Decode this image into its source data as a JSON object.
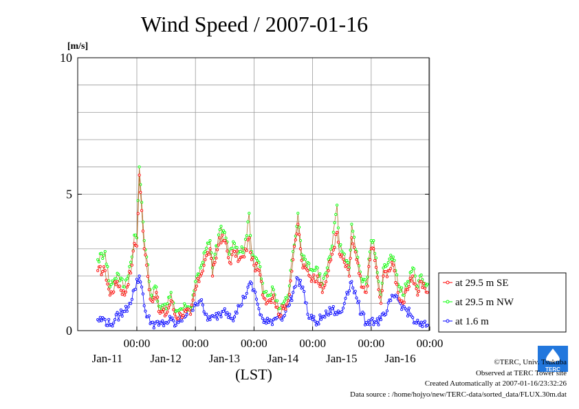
{
  "chart_data": {
    "type": "line",
    "title": "Wind Speed / 2007-01-16",
    "ylabel": "[m/s]",
    "xlabel": "(LST)",
    "ylim": [
      0,
      10
    ],
    "yticks": [
      0,
      5,
      10
    ],
    "xlim": [
      "2007-01-10T08:00",
      "2007-01-16T23:30"
    ],
    "time_step": "30min",
    "xtick_labels": [
      {
        "time": "00:00",
        "date": "Jan-11"
      },
      {
        "time": "00:00",
        "date": "Jan-12"
      },
      {
        "time": "00:00",
        "date": "Jan-13"
      },
      {
        "time": "00:00",
        "date": "Jan-14"
      },
      {
        "time": "00:00",
        "date": "Jan-15"
      },
      {
        "time": "00:00",
        "date": "Jan-16"
      }
    ],
    "grid": true,
    "legend_position": "right",
    "series": [
      {
        "name": "at 29.5 m SE",
        "color": "#ff0000",
        "keypoints": [
          [
            0,
            2.2
          ],
          [
            6,
            2.2
          ],
          [
            10,
            1.3
          ],
          [
            16,
            1.8
          ],
          [
            22,
            1.3
          ],
          [
            28,
            2.4
          ],
          [
            30,
            3.2
          ],
          [
            32,
            3.1
          ],
          [
            34,
            5.7
          ],
          [
            36,
            4.4
          ],
          [
            38,
            3.0
          ],
          [
            40,
            2.4
          ],
          [
            42,
            1.5
          ],
          [
            44,
            1.1
          ],
          [
            48,
            1.4
          ],
          [
            50,
            0.7
          ],
          [
            56,
            0.6
          ],
          [
            60,
            1.1
          ],
          [
            64,
            0.5
          ],
          [
            68,
            0.6
          ],
          [
            72,
            0.7
          ],
          [
            76,
            0.6
          ],
          [
            80,
            1.5
          ],
          [
            84,
            2.0
          ],
          [
            88,
            2.6
          ],
          [
            92,
            3.0
          ],
          [
            94,
            2.0
          ],
          [
            96,
            2.5
          ],
          [
            100,
            3.4
          ],
          [
            104,
            3.3
          ],
          [
            108,
            2.5
          ],
          [
            112,
            2.9
          ],
          [
            116,
            2.6
          ],
          [
            120,
            2.7
          ],
          [
            124,
            3.4
          ],
          [
            126,
            2.6
          ],
          [
            128,
            2.4
          ],
          [
            132,
            2.2
          ],
          [
            136,
            1.2
          ],
          [
            140,
            1.1
          ],
          [
            144,
            1.3
          ],
          [
            148,
            0.6
          ],
          [
            152,
            0.8
          ],
          [
            156,
            1.1
          ],
          [
            160,
            2.6
          ],
          [
            164,
            3.9
          ],
          [
            166,
            3.0
          ],
          [
            168,
            2.3
          ],
          [
            172,
            2.2
          ],
          [
            176,
            1.9
          ],
          [
            180,
            2.0
          ],
          [
            184,
            1.4
          ],
          [
            188,
            2.0
          ],
          [
            192,
            2.8
          ],
          [
            196,
            3.6
          ],
          [
            198,
            2.8
          ],
          [
            202,
            2.5
          ],
          [
            206,
            2.0
          ],
          [
            208,
            3.4
          ],
          [
            212,
            2.6
          ],
          [
            216,
            1.6
          ],
          [
            220,
            1.4
          ],
          [
            224,
            3.0
          ],
          [
            226,
            3.0
          ],
          [
            230,
            1.5
          ],
          [
            232,
            1.0
          ],
          [
            234,
            2.0
          ],
          [
            238,
            2.2
          ],
          [
            242,
            2.4
          ],
          [
            246,
            1.4
          ],
          [
            250,
            1.0
          ],
          [
            254,
            1.5
          ],
          [
            258,
            2.0
          ],
          [
            260,
            1.7
          ],
          [
            262,
            1.3
          ],
          [
            264,
            1.8
          ],
          [
            270,
            1.4
          ]
        ]
      },
      {
        "name": "at 29.5 m NW",
        "color": "#00ff00",
        "keypoints": [
          [
            0,
            2.6
          ],
          [
            6,
            2.9
          ],
          [
            10,
            1.6
          ],
          [
            16,
            2.1
          ],
          [
            22,
            1.6
          ],
          [
            28,
            2.7
          ],
          [
            30,
            3.5
          ],
          [
            32,
            3.4
          ],
          [
            34,
            6.0
          ],
          [
            36,
            4.7
          ],
          [
            38,
            3.3
          ],
          [
            40,
            2.7
          ],
          [
            42,
            1.8
          ],
          [
            44,
            1.3
          ],
          [
            48,
            1.6
          ],
          [
            50,
            0.9
          ],
          [
            56,
            0.8
          ],
          [
            60,
            1.4
          ],
          [
            64,
            0.7
          ],
          [
            68,
            0.8
          ],
          [
            72,
            0.9
          ],
          [
            76,
            0.8
          ],
          [
            80,
            1.8
          ],
          [
            84,
            2.3
          ],
          [
            88,
            2.9
          ],
          [
            92,
            3.3
          ],
          [
            94,
            2.3
          ],
          [
            96,
            2.8
          ],
          [
            100,
            3.7
          ],
          [
            104,
            3.6
          ],
          [
            108,
            2.8
          ],
          [
            112,
            3.2
          ],
          [
            116,
            2.9
          ],
          [
            120,
            3.0
          ],
          [
            124,
            4.3
          ],
          [
            126,
            2.9
          ],
          [
            128,
            2.7
          ],
          [
            132,
            2.5
          ],
          [
            136,
            1.4
          ],
          [
            140,
            1.3
          ],
          [
            144,
            1.5
          ],
          [
            148,
            0.8
          ],
          [
            152,
            1.0
          ],
          [
            156,
            1.3
          ],
          [
            160,
            2.9
          ],
          [
            164,
            4.3
          ],
          [
            166,
            3.3
          ],
          [
            168,
            2.6
          ],
          [
            172,
            2.5
          ],
          [
            176,
            2.2
          ],
          [
            180,
            2.3
          ],
          [
            184,
            1.7
          ],
          [
            188,
            2.3
          ],
          [
            192,
            3.1
          ],
          [
            196,
            4.6
          ],
          [
            198,
            3.1
          ],
          [
            202,
            2.8
          ],
          [
            206,
            2.3
          ],
          [
            208,
            3.9
          ],
          [
            212,
            2.9
          ],
          [
            216,
            1.9
          ],
          [
            220,
            1.7
          ],
          [
            224,
            3.3
          ],
          [
            226,
            3.3
          ],
          [
            230,
            1.8
          ],
          [
            232,
            1.3
          ],
          [
            234,
            2.3
          ],
          [
            238,
            2.5
          ],
          [
            242,
            2.7
          ],
          [
            246,
            1.7
          ],
          [
            250,
            1.3
          ],
          [
            254,
            1.8
          ],
          [
            258,
            2.3
          ],
          [
            260,
            2.0
          ],
          [
            262,
            1.6
          ],
          [
            264,
            2.0
          ],
          [
            270,
            1.7
          ]
        ]
      },
      {
        "name": "at 1.6 m",
        "color": "#0000ff",
        "keypoints": [
          [
            0,
            0.4
          ],
          [
            6,
            0.4
          ],
          [
            10,
            0.2
          ],
          [
            14,
            0.4
          ],
          [
            18,
            0.6
          ],
          [
            22,
            0.7
          ],
          [
            26,
            1.0
          ],
          [
            30,
            1.5
          ],
          [
            34,
            2.0
          ],
          [
            36,
            1.6
          ],
          [
            40,
            0.5
          ],
          [
            44,
            0.3
          ],
          [
            50,
            0.2
          ],
          [
            56,
            0.3
          ],
          [
            60,
            0.4
          ],
          [
            64,
            0.2
          ],
          [
            70,
            0.5
          ],
          [
            76,
            0.8
          ],
          [
            80,
            1.0
          ],
          [
            84,
            1.1
          ],
          [
            88,
            0.6
          ],
          [
            92,
            0.4
          ],
          [
            96,
            0.5
          ],
          [
            100,
            0.6
          ],
          [
            104,
            0.8
          ],
          [
            108,
            0.6
          ],
          [
            112,
            0.5
          ],
          [
            116,
            0.9
          ],
          [
            120,
            1.2
          ],
          [
            124,
            1.7
          ],
          [
            128,
            1.5
          ],
          [
            132,
            0.8
          ],
          [
            136,
            0.3
          ],
          [
            140,
            0.3
          ],
          [
            144,
            0.4
          ],
          [
            148,
            0.6
          ],
          [
            152,
            0.5
          ],
          [
            156,
            0.9
          ],
          [
            160,
            1.4
          ],
          [
            164,
            1.9
          ],
          [
            168,
            1.6
          ],
          [
            172,
            0.6
          ],
          [
            176,
            0.4
          ],
          [
            180,
            0.3
          ],
          [
            184,
            0.5
          ],
          [
            188,
            0.6
          ],
          [
            192,
            0.8
          ],
          [
            196,
            0.6
          ],
          [
            200,
            0.7
          ],
          [
            204,
            1.4
          ],
          [
            208,
            1.8
          ],
          [
            212,
            1.2
          ],
          [
            216,
            0.6
          ],
          [
            220,
            0.3
          ],
          [
            224,
            0.4
          ],
          [
            228,
            0.3
          ],
          [
            232,
            0.4
          ],
          [
            236,
            0.6
          ],
          [
            240,
            1.1
          ],
          [
            244,
            1.3
          ],
          [
            248,
            1.0
          ],
          [
            252,
            0.8
          ],
          [
            256,
            0.6
          ],
          [
            260,
            0.3
          ],
          [
            264,
            0.2
          ],
          [
            270,
            0.2
          ]
        ]
      }
    ]
  },
  "footer": {
    "copyright": "©TERC, Univ. Tsukuba",
    "observed": "Observed at TERC Tower site",
    "created": "Created Automatically at 2007-01-16/23:32:26",
    "source": "Data source : /home/hojyo/new/TERC-data/sorted_data/FLUX.30m.dat"
  },
  "logo": {
    "icon": "terc-logo",
    "text": "TERC",
    "color": "#2277dd"
  }
}
